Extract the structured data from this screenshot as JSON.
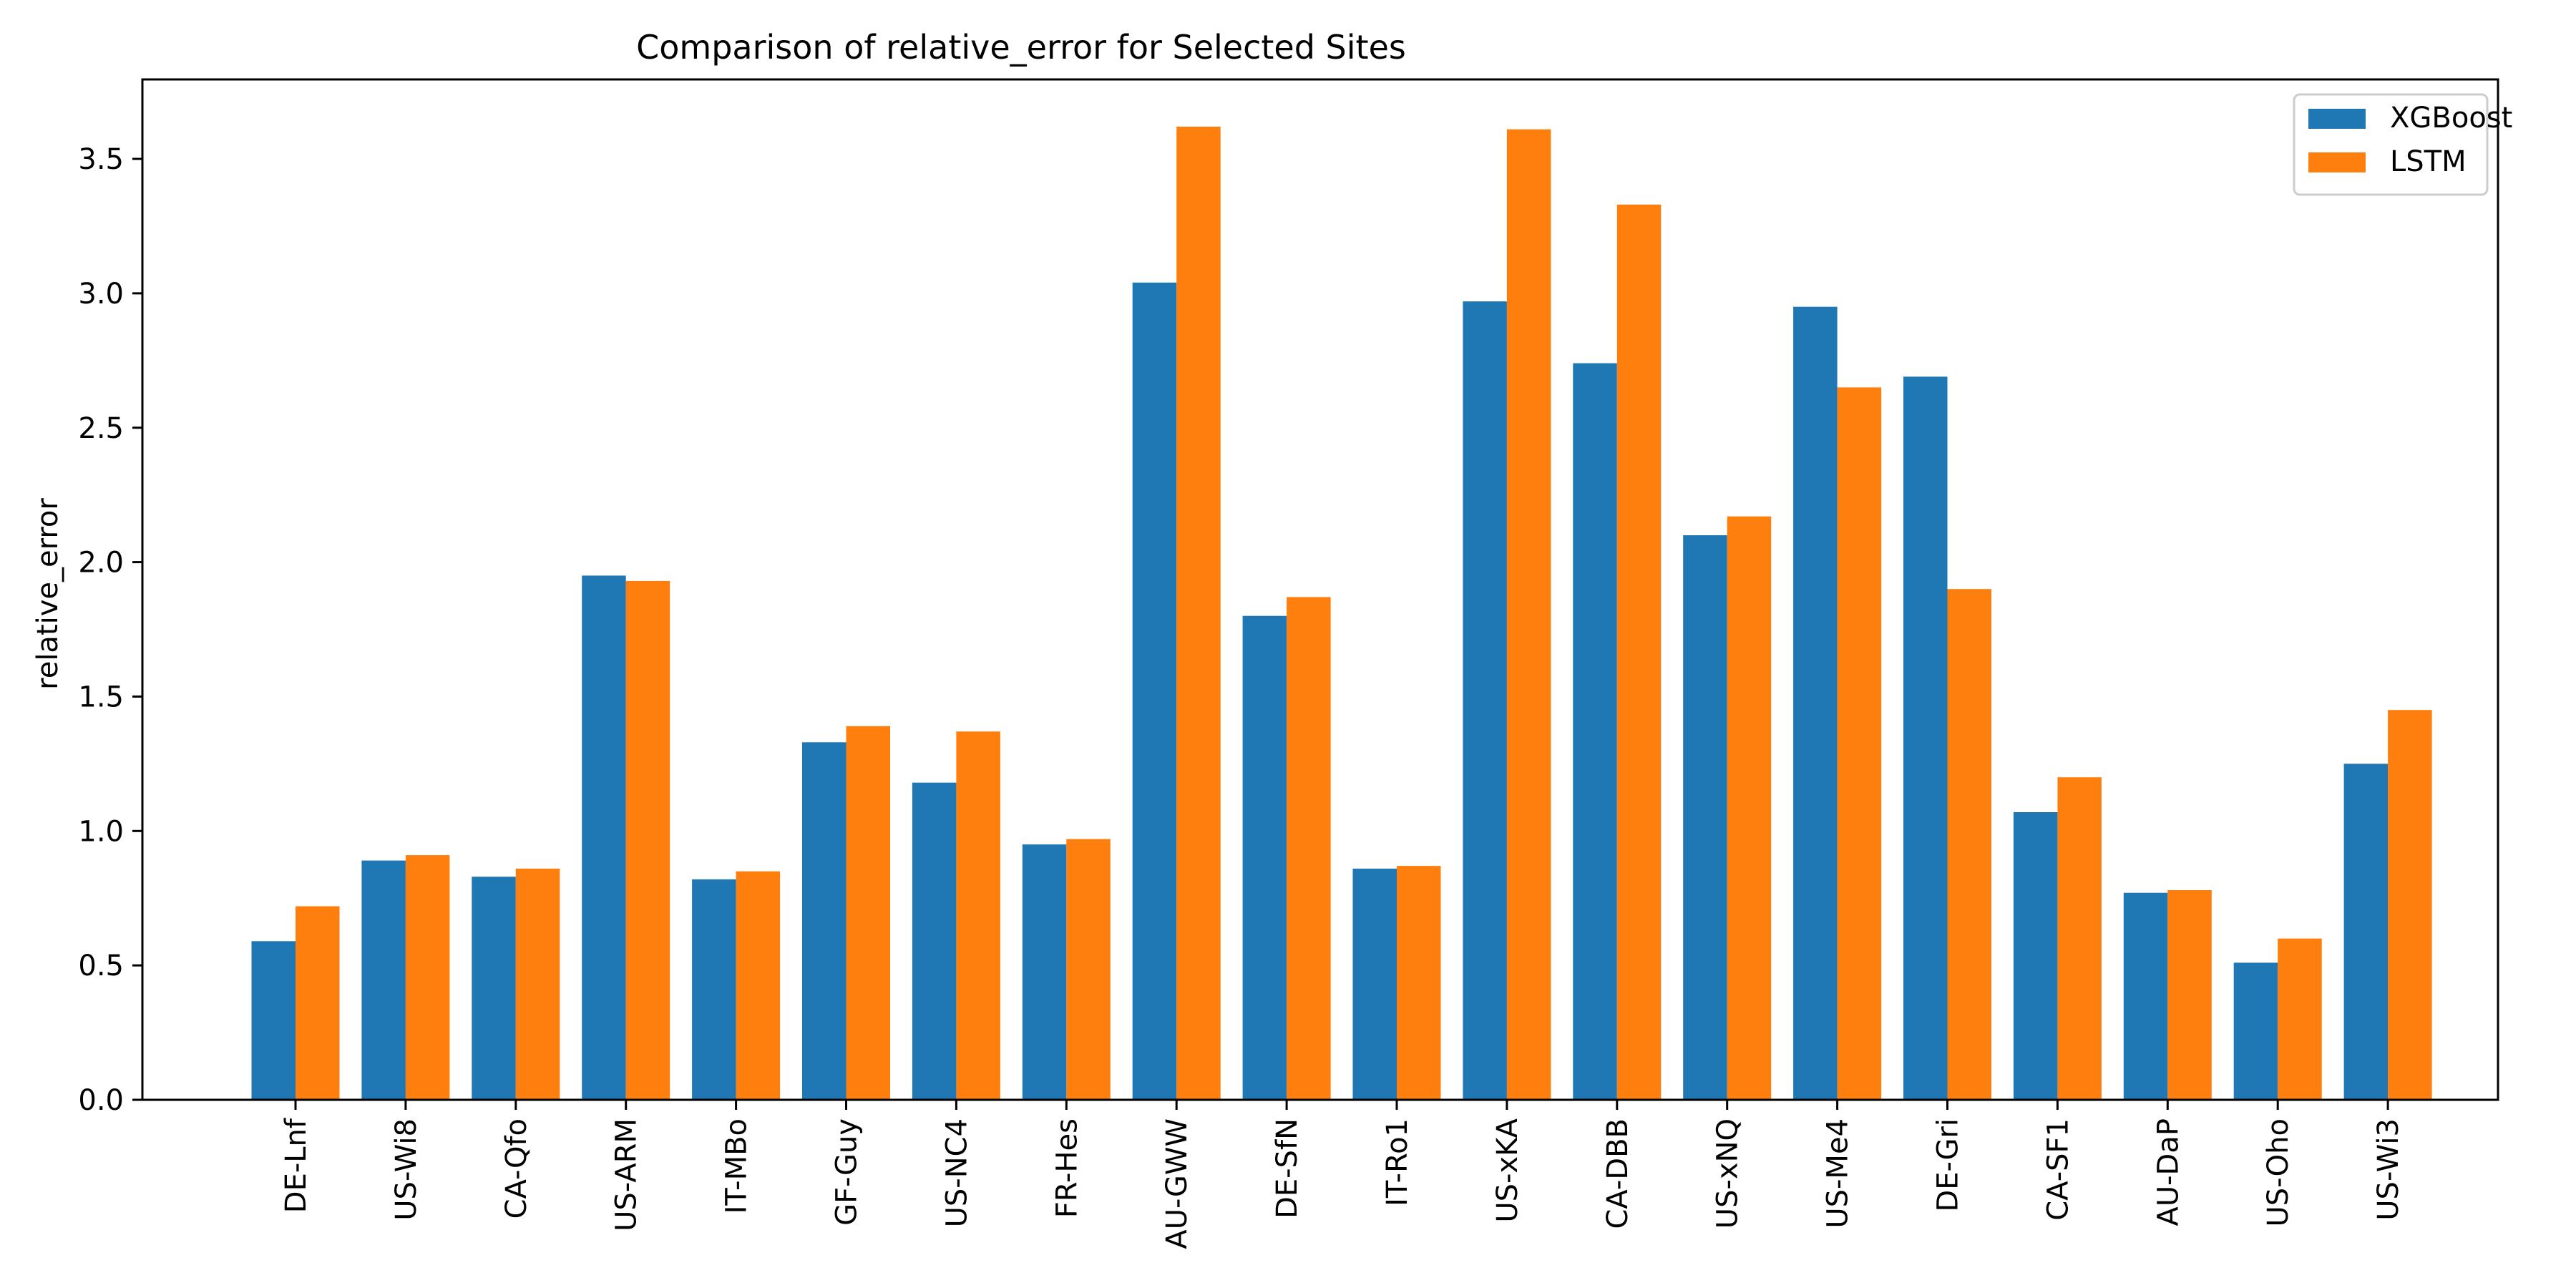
{
  "chart_data": {
    "type": "bar",
    "title": "Comparison of relative_error for Selected Sites",
    "xlabel": "",
    "ylabel": "relative_error",
    "ylim": [
      0,
      3.75
    ],
    "yticks": [
      "0.0",
      "0.5",
      "1.0",
      "1.5",
      "2.0",
      "2.5",
      "3.0",
      "3.5"
    ],
    "grid": false,
    "legend_position": "top-right",
    "categories": [
      "DE-Lnf",
      "US-Wi8",
      "CA-Qfo",
      "US-ARM",
      "IT-MBo",
      "GF-Guy",
      "US-NC4",
      "FR-Hes",
      "AU-GWW",
      "DE-SfN",
      "IT-Ro1",
      "US-xKA",
      "CA-DBB",
      "US-xNQ",
      "US-Me4",
      "DE-Gri",
      "CA-SF1",
      "AU-DaP",
      "US-Oho",
      "US-Wi3"
    ],
    "series": [
      {
        "name": "XGBoost",
        "color": "#1f77b4",
        "values": [
          0.59,
          0.89,
          0.83,
          1.95,
          0.82,
          1.33,
          1.18,
          0.95,
          3.04,
          1.8,
          0.86,
          2.97,
          2.74,
          2.1,
          2.95,
          2.69,
          1.07,
          0.77,
          0.51,
          1.25
        ]
      },
      {
        "name": "LSTM",
        "color": "#ff7f0e",
        "values": [
          0.72,
          0.91,
          0.86,
          1.93,
          0.85,
          1.39,
          1.37,
          0.97,
          3.62,
          1.87,
          0.87,
          3.61,
          3.33,
          2.17,
          2.65,
          1.9,
          1.2,
          0.78,
          0.6,
          1.45
        ]
      }
    ]
  }
}
